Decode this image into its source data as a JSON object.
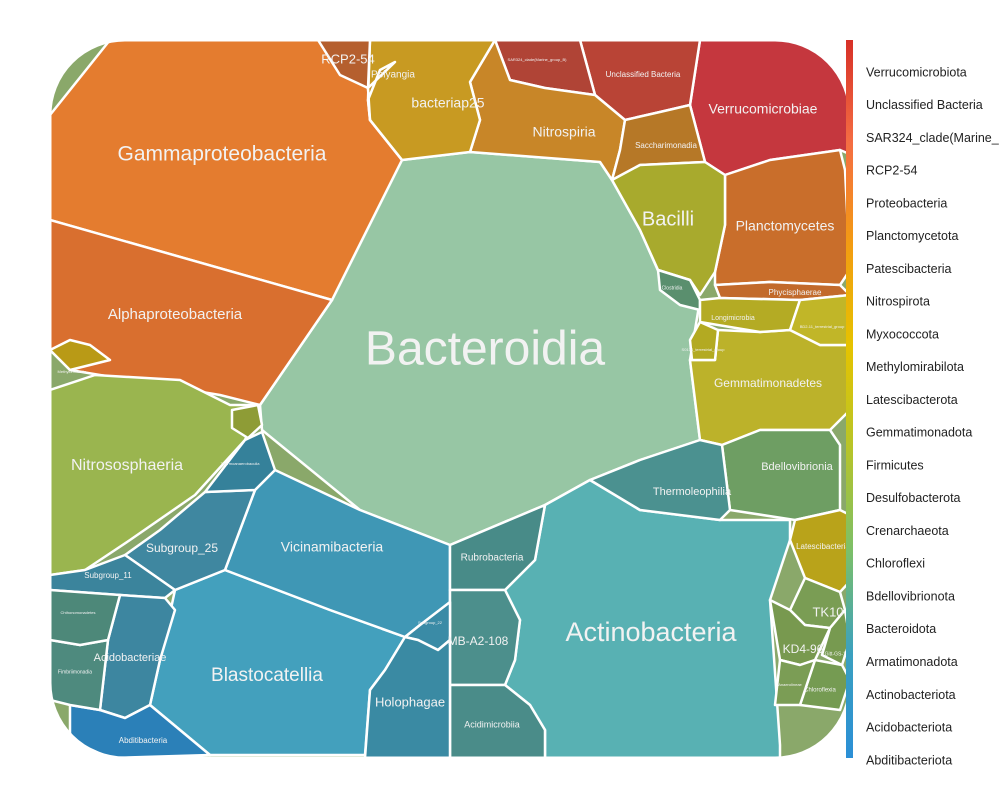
{
  "chart_data": {
    "type": "voronoi-treemap",
    "cells": [
      {
        "label": "Bacteroidia",
        "phylum": "Bacteroidota",
        "color": "#97c6a4"
      },
      {
        "label": "Gammaproteobacteria",
        "phylum": "Proteobacteria",
        "color": "#e47c2f"
      },
      {
        "label": "Alphaproteobacteria",
        "phylum": "Proteobacteria",
        "color": "#d96f2f"
      },
      {
        "label": "Actinobacteria",
        "phylum": "Actinobacteriota",
        "color": "#58b1b3"
      },
      {
        "label": "Blastocatellia",
        "phylum": "Acidobacteriota",
        "color": "#43a0bd"
      },
      {
        "label": "Vicinamibacteria",
        "phylum": "Acidobacteriota",
        "color": "#3f97b5"
      },
      {
        "label": "Nitrososphaeria",
        "phylum": "Crenarchaeota",
        "color": "#9ab54f"
      },
      {
        "label": "Verrucomicrobiae",
        "phylum": "Verrucomicrobiota",
        "color": "#c5373e"
      },
      {
        "label": "Unclassified Bacteria",
        "phylum": "Unclassified Bacteria",
        "color": "#b94436"
      },
      {
        "label": "SAR324_clade(Marine_group_B)",
        "phylum": "SAR324_clade(Marine_",
        "color": "#b04436"
      },
      {
        "label": "Planctomycetes",
        "phylum": "Planctomycetota",
        "color": "#c96e2b"
      },
      {
        "label": "Phycisphaerae",
        "phylum": "Planctomycetota",
        "color": "#c26a2b"
      },
      {
        "label": "Nitrospiria",
        "phylum": "Nitrospirota",
        "color": "#c88628"
      },
      {
        "label": "Saccharimonadia",
        "phylum": "Patescibacteria",
        "color": "#b67827"
      },
      {
        "label": "bacteriap25",
        "phylum": "Myxococcota",
        "color": "#c89a22"
      },
      {
        "label": "Polyangia",
        "phylum": "Myxococcota",
        "color": "#c0922a"
      },
      {
        "label": "RCP2-54",
        "phylum": "RCP2-54",
        "color": "#b55f2e"
      },
      {
        "label": "Bacilli",
        "phylum": "Firmicutes",
        "color": "#a8aa2d"
      },
      {
        "label": "Clostridia",
        "phylum": "Firmicutes",
        "color": "#5a8f6e"
      },
      {
        "label": "Gemmatimonadetes",
        "phylum": "Gemmatimonadota",
        "color": "#bcb22a"
      },
      {
        "label": "Longimicrobia",
        "phylum": "Gemmatimonadota",
        "color": "#b4ab24"
      },
      {
        "label": "BD2-11_terrestrial_group",
        "phylum": "Gemmatimonadota",
        "color": "#c1b628"
      },
      {
        "label": "S0134_terrestrial_group",
        "phylum": "Gemmatimonadota",
        "color": "#b3aa22"
      },
      {
        "label": "Bdellovibrionia",
        "phylum": "Bdellovibrionota",
        "color": "#6e9e63"
      },
      {
        "label": "Latescibacteria",
        "phylum": "Latescibacterota",
        "color": "#b9a31a"
      },
      {
        "label": "TK10",
        "phylum": "Chloroflexi",
        "color": "#7a9d54"
      },
      {
        "label": "KD4-96",
        "phylum": "Chloroflexi",
        "color": "#78994f"
      },
      {
        "label": "Chloroflexia",
        "phylum": "Chloroflexi",
        "color": "#759b52"
      },
      {
        "label": "Anaerolineae",
        "phylum": "Chloroflexi",
        "color": "#7b9d55"
      },
      {
        "label": "Gitt-GS-136",
        "phylum": "Chloroflexi",
        "color": "#779a50"
      },
      {
        "label": "Thermoleophilia",
        "phylum": "Actinobacteriota",
        "color": "#4b9190"
      },
      {
        "label": "Rubrobacteria",
        "phylum": "Actinobacteriota",
        "color": "#488b88"
      },
      {
        "label": "MB-A2-108",
        "phylum": "Actinobacteriota",
        "color": "#4c8f8c"
      },
      {
        "label": "Acidimicrobiia",
        "phylum": "Actinobacteriota",
        "color": "#4a8c89"
      },
      {
        "label": "Subgroup_25",
        "phylum": "Acidobacteriota",
        "color": "#3f87a0"
      },
      {
        "label": "Subgroup_11",
        "phylum": "Acidobacteriota",
        "color": "#3b849c"
      },
      {
        "label": "Subgroup_22",
        "phylum": "Acidobacteriota",
        "color": "#3a8ba6"
      },
      {
        "label": "Holophagae",
        "phylum": "Acidobacteriota",
        "color": "#3a8aa3"
      },
      {
        "label": "Acidobacteriae",
        "phylum": "Acidobacteriota",
        "color": "#3d86a0"
      },
      {
        "label": "Thermoanaerobaculia",
        "phylum": "Acidobacteriota",
        "color": "#35819a"
      },
      {
        "label": "Abditibacteria",
        "phylum": "Abditibacteriota",
        "color": "#2b80b8"
      },
      {
        "label": "Fimbriimonadia",
        "phylum": "Armatimonadota",
        "color": "#4e8a7e"
      },
      {
        "label": "Chthonomonadetes",
        "phylum": "Armatimonadota",
        "color": "#4d8879"
      },
      {
        "label": "Methylomirabilia",
        "phylum": "Methylomirabilota",
        "color": "#b99a16"
      },
      {
        "label": "Desulfobacterota",
        "phylum": "Desulfobacterota",
        "color": "#8e9c36"
      }
    ],
    "legend": {
      "placement": "right",
      "scale_colors": [
        "#d73027",
        "#f46d43",
        "#f39c12",
        "#e5c300",
        "#b6c42a",
        "#7bbf6a",
        "#3aa0c0",
        "#2b8fd6"
      ],
      "entries": [
        "Verrucomicrobiota",
        "Unclassified Bacteria",
        "SAR324_clade(Marine_",
        "RCP2-54",
        "Proteobacteria",
        "Planctomycetota",
        "Patescibacteria",
        "Nitrospirota",
        "Myxococcota",
        "Methylomirabilota",
        "Latescibacterota",
        "Gemmatimonadota",
        "Firmicutes",
        "Desulfobacterota",
        "Crenarchaeota",
        "Chloroflexi",
        "Bdellovibrionota",
        "Bacteroidota",
        "Armatimonadota",
        "Actinobacteriota",
        "Acidobacteriota",
        "Abditibacteriota"
      ]
    }
  }
}
